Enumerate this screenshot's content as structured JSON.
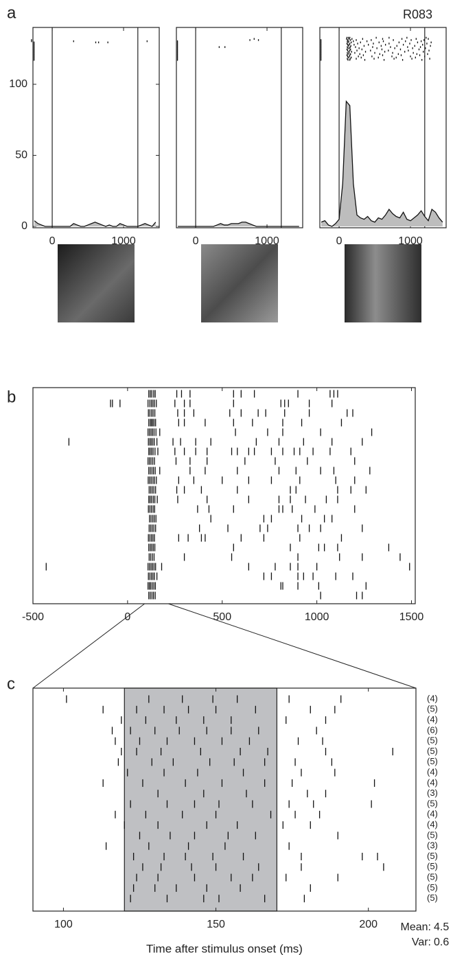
{
  "chart_data": [
    {
      "type": "raster",
      "panel_label": "a",
      "xlim": [
        -270,
        1500
      ],
      "ylim": [
        0,
        140
      ],
      "xticks": [
        0,
        1000
      ],
      "yticks": [
        0,
        50,
        100
      ],
      "stimulus_lines": [
        0,
        1200
      ],
      "trials": [
        [],
        [],
        [
          -290
        ],
        [
          -290,
          300,
          1330
        ],
        [
          -255,
          610,
          650,
          780
        ],
        [
          -255
        ],
        [
          -255
        ],
        [
          -255
        ],
        [
          -255
        ],
        [
          -255
        ],
        [
          -255
        ],
        [
          -255
        ],
        [
          -255
        ],
        [
          -255
        ],
        [
          -255
        ],
        [
          -255
        ],
        [
          -255
        ],
        [
          -255
        ],
        [
          -255
        ],
        [
          -255
        ]
      ],
      "psth": {
        "color": "#bdbdbd",
        "x": [
          -250,
          -200,
          -150,
          -100,
          -50,
          0,
          50,
          100,
          150,
          200,
          250,
          300,
          350,
          400,
          450,
          500,
          550,
          600,
          650,
          700,
          750,
          800,
          850,
          900,
          950,
          1000,
          1050,
          1100,
          1150,
          1200,
          1250,
          1300,
          1350,
          1400,
          1450
        ],
        "values": [
          4,
          2,
          1,
          0,
          0,
          0,
          0,
          0,
          0,
          0,
          0,
          2,
          1,
          0,
          0,
          1,
          2,
          3,
          2,
          1,
          0,
          1,
          0,
          0,
          2,
          1,
          0,
          0,
          0,
          0,
          1,
          2,
          1,
          0,
          3
        ]
      }
    },
    {
      "type": "raster",
      "xlim": [
        -270,
        1500
      ],
      "ylim": [
        0,
        140
      ],
      "xticks": [
        0,
        1000
      ],
      "stimulus_lines": [
        0,
        1200
      ],
      "trials": [
        [],
        [
          820
        ],
        [
          760,
          880
        ],
        [
          -255
        ],
        [
          -255
        ],
        [
          -255
        ],
        [
          -255
        ],
        [
          -255
        ],
        [
          -255,
          330,
          410
        ],
        [
          -255
        ],
        [
          -255
        ],
        [
          -255
        ],
        [
          -255
        ],
        [
          -255
        ],
        [
          -255
        ],
        [
          -255
        ],
        [
          -255
        ],
        [
          -255
        ],
        [
          -255
        ],
        [
          -255
        ]
      ],
      "psth": {
        "color": "#bdbdbd",
        "x": [
          -250,
          -200,
          -150,
          -100,
          -50,
          0,
          50,
          100,
          150,
          200,
          250,
          300,
          350,
          400,
          450,
          500,
          550,
          600,
          650,
          700,
          750,
          800,
          850,
          900,
          950,
          1000,
          1050,
          1100,
          1150,
          1200,
          1250,
          1300,
          1350,
          1400,
          1450
        ],
        "values": [
          0,
          0,
          0,
          0,
          0,
          0,
          0,
          0,
          0,
          0,
          0,
          1,
          2,
          1,
          1,
          2,
          2,
          2,
          3,
          3,
          2,
          1,
          0,
          0,
          0,
          0,
          0,
          0,
          0,
          0,
          0,
          0,
          0,
          0,
          0
        ]
      }
    },
    {
      "type": "raster",
      "title": "R083",
      "xlim": [
        -270,
        1500
      ],
      "ylim": [
        0,
        140
      ],
      "xticks": [
        0,
        1000
      ],
      "stimulus_lines": [
        0,
        1200
      ],
      "trials": [
        [
          110,
          130,
          150,
          520,
          700,
          950,
          1220
        ],
        [
          105,
          140,
          180,
          330,
          610,
          880,
          1080,
          1250
        ],
        [
          -255,
          120,
          160,
          240,
          450,
          760,
          1010,
          1190
        ],
        [
          -255,
          115,
          135,
          200,
          390,
          620,
          930,
          1150
        ],
        [
          -255,
          125,
          170,
          300,
          560,
          840,
          1100,
          1290
        ],
        [
          -255,
          110,
          150,
          260,
          480,
          700,
          990,
          1230
        ],
        [
          -255,
          120,
          140,
          210,
          410,
          650,
          900,
          1170
        ],
        [
          -255,
          130,
          165,
          350,
          590,
          810,
          1060,
          1280
        ],
        [
          -255,
          115,
          155,
          230,
          470,
          720,
          960,
          1140
        ],
        [
          -255,
          125,
          145,
          280,
          530,
          780,
          1030,
          1210
        ],
        [
          -255,
          110,
          160,
          320,
          600,
          860,
          1120
        ],
        [
          -255,
          120,
          150,
          250,
          440,
          690,
          970,
          1260
        ],
        [
          -255,
          135,
          175,
          370,
          640,
          920,
          1180
        ],
        [
          -255,
          115,
          140,
          220,
          500,
          750,
          1040
        ],
        [
          -255,
          125,
          160,
          290,
          570,
          830,
          1090,
          1240
        ],
        [
          -255,
          110,
          150,
          340,
          610,
          870,
          1130
        ],
        [
          -255,
          120,
          145,
          270,
          460,
          740,
          1000,
          1200
        ],
        [
          -255,
          130,
          170,
          310,
          550,
          800,
          1070
        ],
        [
          -255,
          115,
          155,
          240,
          490,
          770,
          1020,
          1270
        ],
        [
          -255,
          125,
          150,
          360,
          630,
          890,
          1160
        ]
      ],
      "psth": {
        "color": "#bdbdbd",
        "x": [
          -250,
          -200,
          -150,
          -100,
          -50,
          0,
          50,
          100,
          150,
          200,
          250,
          300,
          350,
          400,
          450,
          500,
          550,
          600,
          650,
          700,
          750,
          800,
          850,
          900,
          950,
          1000,
          1050,
          1100,
          1150,
          1200,
          1250,
          1300,
          1350,
          1400,
          1450
        ],
        "values": [
          3,
          4,
          1,
          0,
          2,
          5,
          30,
          88,
          85,
          30,
          8,
          6,
          5,
          7,
          4,
          3,
          6,
          5,
          8,
          12,
          9,
          7,
          6,
          10,
          5,
          4,
          6,
          8,
          11,
          7,
          4,
          12,
          10,
          6,
          3
        ]
      }
    },
    {
      "type": "raster",
      "panel_label": "b",
      "xlim": [
        -500,
        1520
      ],
      "xticks": [
        -500,
        0,
        500,
        1000,
        1500
      ],
      "trials": [
        [
          112,
          120,
          128,
          138,
          146,
          260,
          285,
          330,
          560,
          600,
          670,
          900,
          1070,
          1090,
          1110
        ],
        [
          -90,
          -80,
          -40,
          108,
          118,
          126,
          134,
          142,
          152,
          250,
          300,
          330,
          560,
          810,
          830,
          850,
          960,
          1080
        ],
        [
          110,
          118,
          127,
          135,
          144,
          265,
          300,
          350,
          540,
          600,
          690,
          730,
          830,
          960,
          1160,
          1190
        ],
        [
          112,
          120,
          126,
          133,
          140,
          148,
          270,
          300,
          410,
          560,
          660,
          820,
          920,
          1130
        ],
        [
          108,
          116,
          124,
          132,
          140,
          150,
          170,
          570,
          740,
          820,
          1020,
          1290
        ],
        [
          -310,
          110,
          118,
          125,
          133,
          141,
          155,
          240,
          280,
          360,
          440,
          680,
          800,
          930,
          1080,
          1240
        ],
        [
          112,
          119,
          127,
          135,
          145,
          160,
          250,
          300,
          360,
          420,
          550,
          580,
          640,
          670,
          760,
          820,
          880,
          910,
          980,
          1070,
          1180
        ],
        [
          108,
          116,
          124,
          133,
          142,
          256,
          330,
          420,
          620,
          780,
          950,
          1200
        ],
        [
          112,
          120,
          129,
          137,
          146,
          170,
          330,
          410,
          580,
          800,
          890,
          1020,
          1090,
          1280
        ],
        [
          109,
          117,
          125,
          134,
          142,
          152,
          270,
          350,
          500,
          640,
          760,
          910,
          1100,
          1200
        ],
        [
          114,
          122,
          130,
          139,
          148,
          260,
          300,
          390,
          580,
          860,
          890,
          1110,
          1180,
          1260
        ],
        [
          112,
          119,
          127,
          136,
          144,
          157,
          265,
          420,
          640,
          800,
          860,
          940,
          1050,
          1110
        ],
        [
          110,
          118,
          126,
          135,
          143,
          370,
          430,
          560,
          800,
          820,
          870,
          990,
          1200
        ],
        [
          116,
          124,
          133,
          141,
          150,
          440,
          720,
          760,
          920,
          1040,
          1080
        ],
        [
          114,
          122,
          130,
          139,
          148,
          380,
          530,
          700,
          740,
          900,
          960,
          1020,
          1240
        ],
        [
          110,
          118,
          126,
          134,
          142,
          270,
          320,
          390,
          410,
          600,
          720,
          910,
          1130
        ],
        [
          112,
          120,
          128,
          136,
          144,
          560,
          860,
          1010,
          1040,
          1110,
          1380
        ],
        [
          114,
          122,
          131,
          140,
          300,
          550,
          900,
          1120,
          1240,
          1440
        ],
        [
          -430,
          108,
          116,
          124,
          132,
          140,
          148,
          180,
          640,
          780,
          860,
          900,
          1000,
          1490
        ],
        [
          110,
          118,
          126,
          134,
          142,
          155,
          720,
          760,
          900,
          930,
          980,
          1100,
          1190
        ],
        [
          108,
          115,
          122,
          130,
          139,
          147,
          810,
          820,
          900,
          1010,
          1260
        ],
        [
          112,
          120,
          129,
          137,
          146,
          1020,
          1210,
          1240
        ]
      ]
    },
    {
      "type": "raster",
      "panel_label": "c",
      "xlim": [
        90,
        215.6
      ],
      "xticks": [
        100,
        150,
        200
      ],
      "window": [
        120,
        170
      ],
      "window_color": "#bfc0c3",
      "x_label": "Time after stimulus onset (ms)",
      "trials": [
        [
          101,
          128,
          139,
          149,
          157,
          174,
          191
        ],
        [
          113,
          124,
          133,
          141,
          150,
          163,
          181,
          189
        ],
        [
          119,
          127,
          137,
          146,
          155,
          173,
          186
        ],
        [
          116,
          122,
          130,
          138,
          147,
          155,
          164,
          183
        ],
        [
          117,
          125,
          134,
          143,
          152,
          161,
          177,
          185
        ],
        [
          119,
          124,
          132,
          145,
          158,
          167,
          186,
          208
        ],
        [
          118,
          129,
          136,
          148,
          156,
          166,
          176,
          188
        ],
        [
          121,
          133,
          144,
          159,
          178,
          189
        ],
        [
          113,
          126,
          140,
          152,
          166,
          175,
          202
        ],
        [
          131,
          146,
          160,
          180,
          186
        ],
        [
          122,
          134,
          143,
          151,
          162,
          174,
          182,
          201
        ],
        [
          117,
          127,
          139,
          150,
          168,
          176,
          184
        ],
        [
          120,
          131,
          147,
          157,
          172,
          181
        ],
        [
          125,
          135,
          143,
          154,
          163,
          190
        ],
        [
          114,
          128,
          141,
          153,
          174
        ],
        [
          123,
          133,
          140,
          149,
          159,
          178,
          198,
          203
        ],
        [
          126,
          132,
          142,
          150,
          164,
          178,
          205
        ],
        [
          124,
          131,
          143,
          155,
          162,
          173,
          190
        ],
        [
          123,
          130,
          137,
          147,
          158,
          181
        ],
        [
          122,
          134,
          146,
          151,
          166,
          179
        ]
      ],
      "counts": [
        4,
        5,
        4,
        6,
        5,
        5,
        5,
        4,
        4,
        3,
        5,
        4,
        4,
        5,
        3,
        5,
        5,
        5,
        5,
        5
      ],
      "count_labels": [
        "(4)",
        "(5)",
        "(4)",
        "(6)",
        "(5)",
        "(5)",
        "(5)",
        "(4)",
        "(4)",
        "(3)",
        "(5)",
        "(4)",
        "(4)",
        "(5)",
        "(3)",
        "(5)",
        "(5)",
        "(5)",
        "(5)",
        "(5)"
      ],
      "stats": [
        {
          "label": "Mean:",
          "value": 4.5
        },
        {
          "label": "Var:",
          "value": 0.6
        }
      ]
    }
  ]
}
